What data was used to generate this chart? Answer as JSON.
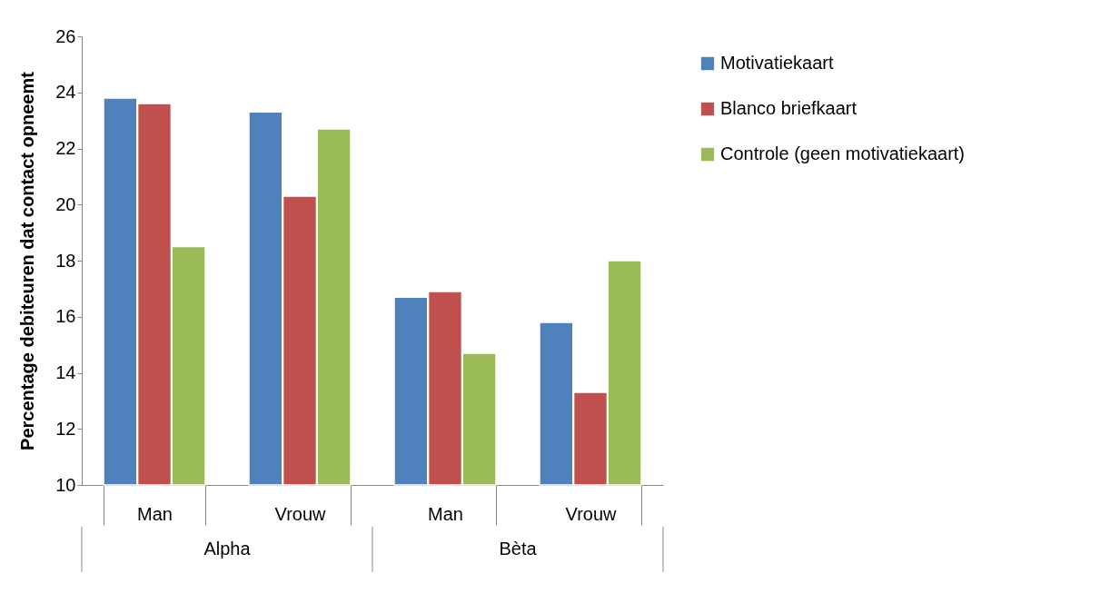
{
  "chart_data": {
    "type": "bar",
    "ylabel": "Percentage debiteuren dat contact opneemt",
    "categories": [
      "Man",
      "Vrouw",
      "Man",
      "Vrouw"
    ],
    "series": [
      {
        "name": "Motivatiekaart",
        "color": "#4f81bd",
        "values": [
          23.8,
          23.3,
          16.7,
          15.8
        ]
      },
      {
        "name": "Blanco briefkaart",
        "color": "#c0504d",
        "values": [
          23.6,
          20.3,
          16.9,
          13.3
        ]
      },
      {
        "name": "Controle (geen motivatiekaart)",
        "color": "#9bbb59",
        "values": [
          18.5,
          22.7,
          14.7,
          18.0
        ]
      }
    ],
    "annotations": [
      "Alpha",
      "Bèta"
    ],
    "ylim": [
      10,
      26
    ],
    "yticks": [
      10,
      12,
      14,
      16,
      18,
      20,
      22,
      24,
      26
    ],
    "grid": false,
    "legend": "right"
  }
}
